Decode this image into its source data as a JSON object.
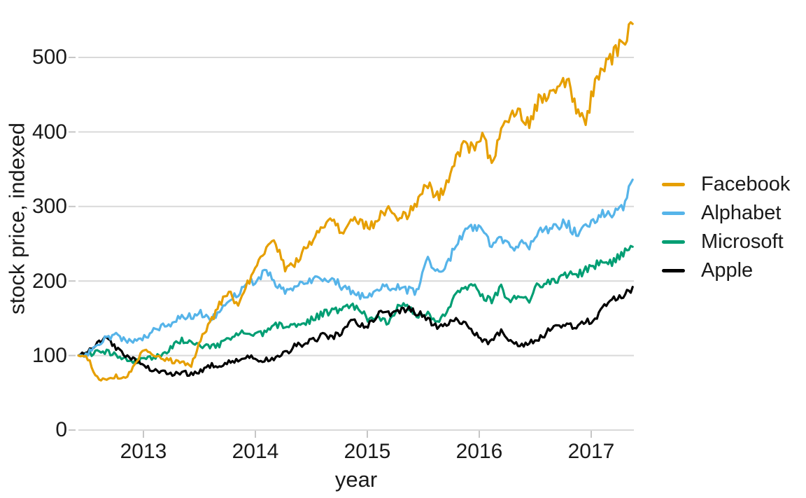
{
  "figure": {
    "background": "#ffffff"
  },
  "axes": {
    "xlabel": "year",
    "ylabel": "stock price, indexed",
    "xtick_labels": [
      "2013",
      "2014",
      "2015",
      "2016",
      "2017"
    ],
    "ytick_labels": [
      "0",
      "100",
      "200",
      "300",
      "400",
      "500"
    ],
    "grid_color": "#d9d9d9",
    "tick_color": "#c6c6c6",
    "label_color": "#1a1a1a"
  },
  "chart_data": {
    "type": "line",
    "title": "",
    "xlabel": "year",
    "ylabel": "stock price, indexed",
    "x_unit": "monthly points, June 2012 through May 2017",
    "x_start_year": 2012.42,
    "x_end_year": 2017.37,
    "xlim": [
      2012.35,
      2017.45
    ],
    "ylim": [
      0,
      560
    ],
    "xticks": [
      2013,
      2014,
      2015,
      2016,
      2017
    ],
    "yticks": [
      0,
      100,
      200,
      300,
      400,
      500
    ],
    "grid": "horizontal gridlines only",
    "legend_position": "right-center",
    "series": [
      {
        "name": "Facebook",
        "color": "#E69F00",
        "values": [
          100,
          95,
          70,
          66,
          72,
          70,
          88,
          108,
          102,
          97,
          93,
          90,
          86,
          120,
          143,
          168,
          186,
          167,
          198,
          218,
          242,
          252,
          215,
          224,
          240,
          256,
          270,
          286,
          266,
          283,
          279,
          272,
          285,
          297,
          283,
          288,
          307,
          334,
          312,
          322,
          362,
          382,
          377,
          400,
          355,
          405,
          422,
          426,
          408,
          444,
          452,
          461,
          472,
          428,
          417,
          463,
          486,
          505,
          520,
          545
        ]
      },
      {
        "name": "Alphabet",
        "color": "#56B4E9",
        "values": [
          100,
          103,
          112,
          124,
          128,
          120,
          118,
          124,
          134,
          139,
          142,
          153,
          152,
          157,
          151,
          155,
          176,
          184,
          193,
          204,
          212,
          197,
          184,
          189,
          199,
          203,
          199,
          204,
          193,
          187,
          178,
          182,
          192,
          191,
          193,
          188,
          184,
          232,
          216,
          212,
          247,
          264,
          270,
          268,
          246,
          256,
          244,
          252,
          246,
          266,
          270,
          273,
          278,
          263,
          270,
          282,
          292,
          290,
          296,
          336
        ]
      },
      {
        "name": "Microsoft",
        "color": "#009E73",
        "values": [
          100,
          101,
          105,
          106,
          101,
          95,
          92,
          95,
          97,
          101,
          113,
          121,
          119,
          110,
          112,
          115,
          122,
          131,
          129,
          127,
          132,
          141,
          139,
          141,
          144,
          149,
          156,
          160,
          162,
          169,
          160,
          146,
          151,
          142,
          168,
          167,
          154,
          158,
          147,
          153,
          182,
          189,
          194,
          178,
          175,
          190,
          174,
          181,
          176,
          196,
          199,
          200,
          208,
          207,
          214,
          222,
          223,
          227,
          238,
          246
        ]
      },
      {
        "name": "Apple",
        "color": "#000000",
        "values": [
          100,
          106,
          116,
          124,
          111,
          101,
          95,
          88,
          80,
          79,
          73,
          79,
          74,
          79,
          87,
          85,
          92,
          95,
          99,
          93,
          94,
          96,
          103,
          113,
          116,
          120,
          127,
          125,
          130,
          149,
          139,
          142,
          160,
          156,
          160,
          163,
          157,
          152,
          139,
          142,
          148,
          146,
          132,
          121,
          118,
          134,
          117,
          113,
          119,
          122,
          133,
          139,
          141,
          137,
          144,
          150,
          167,
          175,
          177,
          192
        ]
      }
    ]
  }
}
